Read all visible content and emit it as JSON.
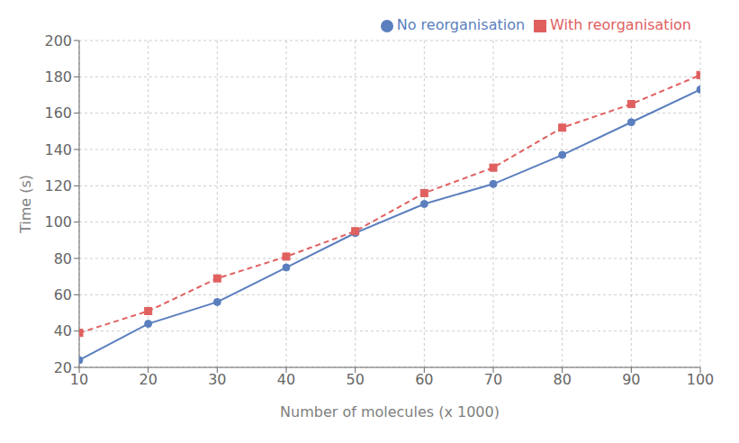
{
  "chart_data": {
    "type": "line",
    "xlabel": "Number of molecules (x 1000)",
    "ylabel": "Time (s)",
    "x": [
      10,
      20,
      30,
      40,
      50,
      60,
      70,
      80,
      90,
      100
    ],
    "series": [
      {
        "name": "No reorganisation",
        "color": "#5b7fbe",
        "values": [
          24,
          44,
          56,
          75,
          94,
          110,
          121,
          137,
          155,
          173
        ],
        "marker": "circle",
        "line_style": "solid"
      },
      {
        "name": "With reorganisation",
        "color": "#e06060",
        "values": [
          39,
          51,
          69,
          81,
          95,
          116,
          130,
          152,
          165,
          181
        ],
        "marker": "square",
        "line_style": "dashed"
      }
    ],
    "xlim": [
      10,
      100
    ],
    "ylim": [
      20,
      200
    ],
    "xticks": [
      10,
      20,
      30,
      40,
      50,
      60,
      70,
      80,
      90,
      100
    ],
    "yticks": [
      20,
      40,
      60,
      80,
      100,
      120,
      140,
      160,
      180,
      200
    ],
    "grid": true,
    "legend": "upper right"
  }
}
